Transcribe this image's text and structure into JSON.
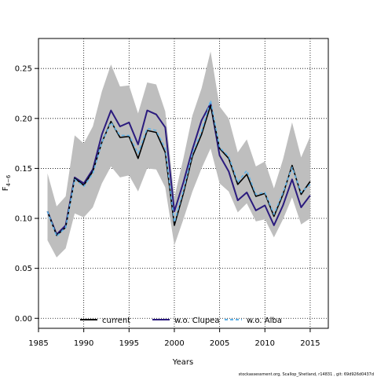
{
  "chart_data": {
    "type": "line",
    "xlabel": "Years",
    "ylabel": "F",
    "ylabel_subscript": "4−6",
    "xlim": [
      1985,
      2017
    ],
    "ylim": [
      -0.01,
      0.28
    ],
    "xticks": [
      1985,
      1990,
      1995,
      2000,
      2005,
      2010,
      2015
    ],
    "yticks": [
      "0.00",
      "0.05",
      "0.10",
      "0.15",
      "0.20",
      "0.25"
    ],
    "ytick_values": [
      0.0,
      0.05,
      0.1,
      0.15,
      0.2,
      0.25
    ],
    "grid": "dotted",
    "legend_position": "bottom",
    "x": [
      1986,
      1987,
      1988,
      1989,
      1990,
      1991,
      1992,
      1993,
      1994,
      1995,
      1996,
      1997,
      1998,
      1999,
      2000,
      2001,
      2002,
      2003,
      2004,
      2005,
      2006,
      2007,
      2008,
      2009,
      2010,
      2011,
      2012,
      2013,
      2014,
      2015
    ],
    "band": {
      "upper": [
        0.145,
        0.112,
        0.122,
        0.183,
        0.175,
        0.192,
        0.227,
        0.254,
        0.232,
        0.233,
        0.205,
        0.236,
        0.234,
        0.207,
        0.121,
        0.16,
        0.203,
        0.23,
        0.267,
        0.212,
        0.2,
        0.166,
        0.179,
        0.152,
        0.157,
        0.13,
        0.159,
        0.196,
        0.161,
        0.182
      ],
      "lower": [
        0.078,
        0.061,
        0.07,
        0.105,
        0.101,
        0.111,
        0.135,
        0.152,
        0.141,
        0.143,
        0.127,
        0.15,
        0.149,
        0.131,
        0.073,
        0.099,
        0.127,
        0.15,
        0.17,
        0.135,
        0.127,
        0.106,
        0.115,
        0.097,
        0.099,
        0.081,
        0.099,
        0.121,
        0.094,
        0.1
      ],
      "color": "#bebebe"
    },
    "series": [
      {
        "name": "current",
        "color": "#000000",
        "dash": "solid",
        "values": [
          0.107,
          0.083,
          0.091,
          0.14,
          0.133,
          0.147,
          0.176,
          0.197,
          0.181,
          0.182,
          0.16,
          0.188,
          0.186,
          0.166,
          0.093,
          0.125,
          0.162,
          0.184,
          0.213,
          0.17,
          0.16,
          0.134,
          0.144,
          0.122,
          0.125,
          0.102,
          0.124,
          0.153,
          0.124,
          0.137
        ]
      },
      {
        "name": "w.o. Clupea",
        "color": "#2b1b7e",
        "dash": "solid",
        "values": [
          0.107,
          0.084,
          0.093,
          0.141,
          0.135,
          0.149,
          0.184,
          0.208,
          0.192,
          0.196,
          0.174,
          0.208,
          0.204,
          0.191,
          0.107,
          0.136,
          0.169,
          0.198,
          0.215,
          0.163,
          0.147,
          0.118,
          0.126,
          0.108,
          0.113,
          0.093,
          0.113,
          0.139,
          0.111,
          0.123
        ]
      },
      {
        "name": "w.o. Alba",
        "color": "#5fb3e8",
        "dash": "dashed",
        "values": [
          0.107,
          0.082,
          0.091,
          0.139,
          0.132,
          0.145,
          0.176,
          0.196,
          0.183,
          0.183,
          0.165,
          0.19,
          0.188,
          0.17,
          0.096,
          0.128,
          0.165,
          0.187,
          0.218,
          0.171,
          0.162,
          0.136,
          0.148,
          0.124,
          0.126,
          0.104,
          0.126,
          0.151,
          0.126,
          0.134
        ]
      }
    ]
  },
  "footer_text": "stockassessment.org, Scallop_Shetland, r14831 , git: 69d926d0437d"
}
